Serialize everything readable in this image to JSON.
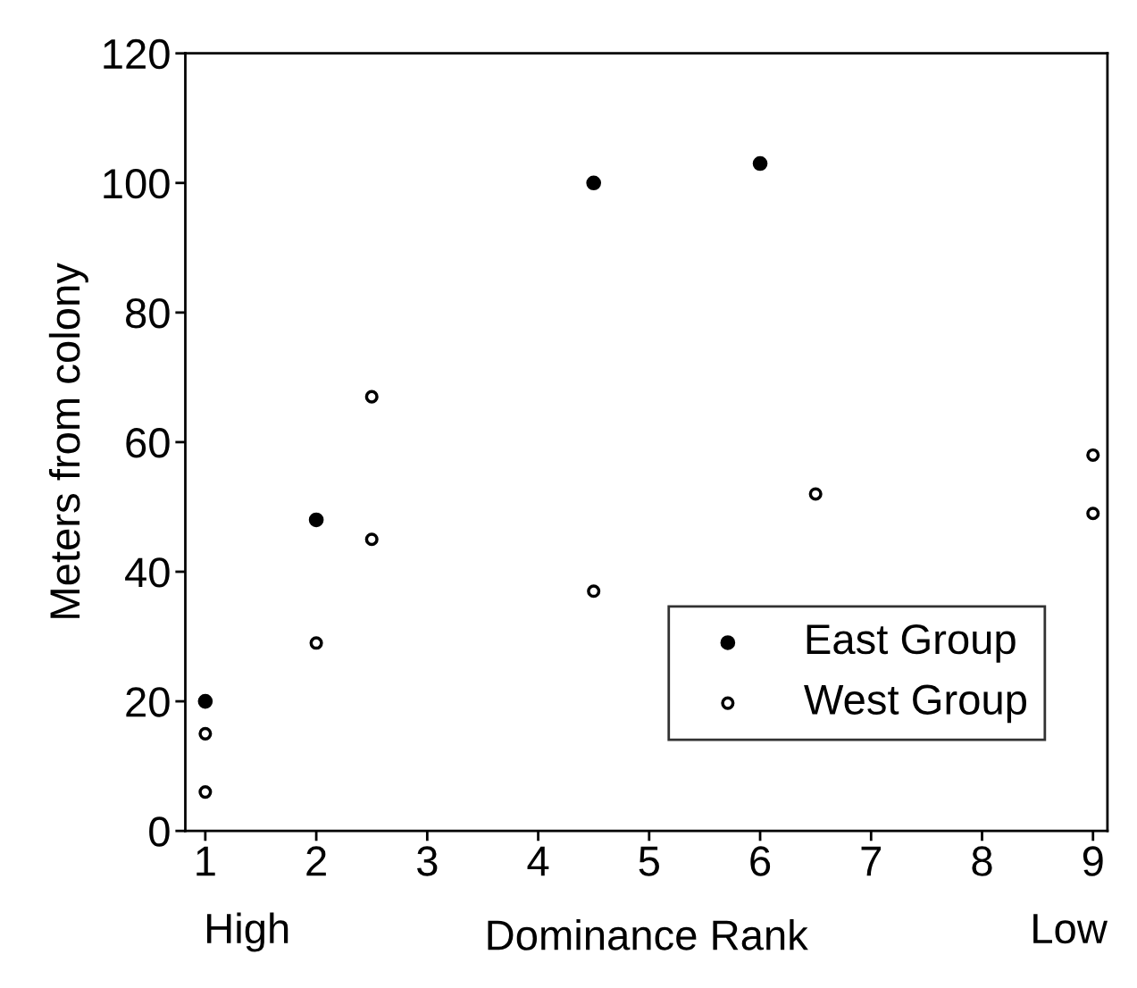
{
  "chart_data": {
    "type": "scatter",
    "xlabel": "Dominance Rank",
    "ylabel": "Meters from colony",
    "annotations": [
      "High",
      "Low"
    ],
    "series": [
      {
        "name": "East Group",
        "color": "#000000",
        "marker": "circle",
        "x": [
          1,
          2,
          4.5,
          6
        ],
        "values": [
          20,
          48,
          100,
          103
        ]
      },
      {
        "name": "West Group",
        "color": "#000000",
        "marker": "circle",
        "x": [
          1,
          1,
          2,
          2.5,
          2.5,
          4.5,
          6.5,
          9,
          9
        ],
        "values": [
          15,
          6,
          29,
          67,
          45,
          37,
          52,
          58,
          49
        ]
      }
    ],
    "xlim": [
      0.82,
      9.13
    ],
    "xticks": [
      1,
      2,
      3,
      4,
      5,
      6,
      7,
      8,
      9
    ],
    "ylim": [
      0,
      120
    ],
    "yticks": [
      0,
      20,
      40,
      60,
      80,
      100,
      120
    ],
    "grid": false,
    "legend": "bottom right"
  }
}
